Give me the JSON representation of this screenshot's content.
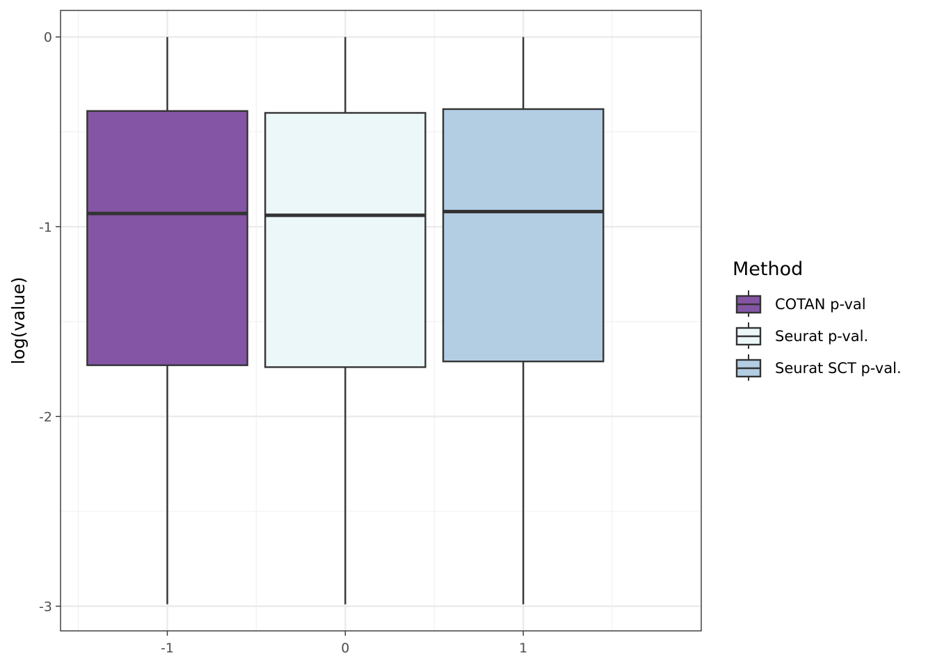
{
  "chart_data": {
    "type": "box",
    "xlabel": "",
    "ylabel": "log(value)",
    "ylim": [
      -3.13,
      0.14
    ],
    "yticks": [
      0,
      -1,
      -2,
      -3
    ],
    "ytick_labels": [
      "0",
      "-1",
      "-2",
      "-3"
    ],
    "categories": [
      "-1",
      "0",
      "1"
    ],
    "grid": true,
    "legend": {
      "title": "Method",
      "position": "right"
    },
    "series": [
      {
        "name": "COTAN p-val",
        "color": "#8555a5",
        "boxes": [
          {
            "category": "-1",
            "min": -2.99,
            "q1": -1.73,
            "median": -0.93,
            "q3": -0.39,
            "max": 0.0
          }
        ]
      },
      {
        "name": "Seurat p-val.",
        "color": "#ecf7f9",
        "boxes": [
          {
            "category": "0",
            "min": -2.99,
            "q1": -1.74,
            "median": -0.94,
            "q3": -0.4,
            "max": 0.0
          }
        ]
      },
      {
        "name": "Seurat SCT p-val.",
        "color": "#b3cde3",
        "boxes": [
          {
            "category": "1",
            "min": -2.99,
            "q1": -1.71,
            "median": -0.92,
            "q3": -0.38,
            "max": 0.0
          }
        ]
      }
    ]
  }
}
